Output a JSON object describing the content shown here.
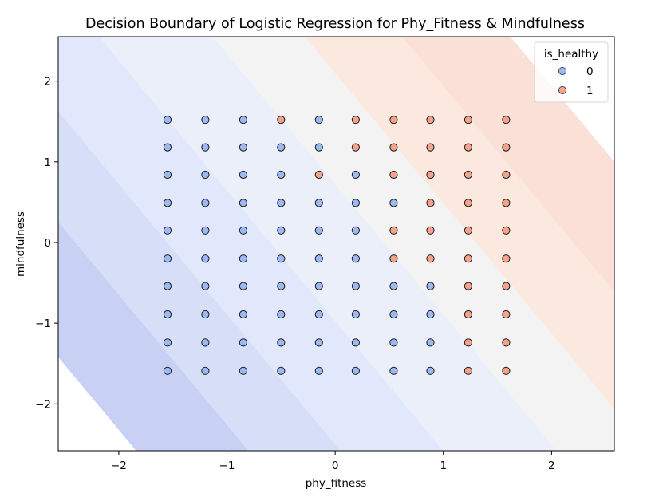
{
  "chart_data": {
    "type": "scatter",
    "title": "Decision Boundary of Logistic Regression for Phy_Fitness & Mindfulness",
    "xlabel": "phy_fitness",
    "ylabel": "mindfulness",
    "xlim": [
      -2.56,
      2.58
    ],
    "ylim": [
      -2.58,
      2.55
    ],
    "xticks": [
      -2,
      -1,
      0,
      1,
      2
    ],
    "yticks": [
      -2,
      -1,
      0,
      1,
      2
    ],
    "x_tick_labels": [
      "−2",
      "−1",
      "0",
      "1",
      "2"
    ],
    "y_tick_labels": [
      "−2",
      "−1",
      "0",
      "1",
      "2"
    ],
    "legend": {
      "title": "is_healthy",
      "position": "top-right",
      "entries": [
        {
          "label": "0",
          "color": "#9db9f1"
        },
        {
          "label": "1",
          "color": "#f3a38a"
        }
      ]
    },
    "class_colors": {
      "0": "#9db9f1",
      "1": "#f3a38a"
    },
    "boundary": {
      "description": "filled contours of predicted probability, coolwarm colormap",
      "direction": [
        1.0,
        0.62
      ],
      "levels": [
        -3.44,
        -2.4,
        -1.55,
        -0.6,
        0.45,
        1.3,
        2.2,
        3.2
      ],
      "colors": [
        "#c8d1f3",
        "#d6def8",
        "#e1e8fb",
        "#ebeffa",
        "#f3f3f3",
        "#fbe8df",
        "#fae0d6",
        "#f7d2c8"
      ]
    },
    "x": [
      -1.55,
      -1.2,
      -0.85,
      -0.5,
      -0.15,
      0.19,
      0.54,
      0.88,
      1.23,
      1.58
    ],
    "y": [
      1.52,
      1.18,
      0.84,
      0.49,
      0.15,
      -0.2,
      -0.54,
      -0.89,
      -1.24,
      -1.59
    ],
    "labels": [
      [
        0,
        0,
        0,
        1,
        0,
        1,
        1,
        1,
        1,
        1
      ],
      [
        0,
        0,
        0,
        0,
        0,
        1,
        1,
        1,
        1,
        1
      ],
      [
        0,
        0,
        0,
        0,
        1,
        0,
        1,
        1,
        1,
        1
      ],
      [
        0,
        0,
        0,
        0,
        0,
        0,
        0,
        1,
        1,
        1
      ],
      [
        0,
        0,
        0,
        0,
        0,
        0,
        1,
        1,
        1,
        1
      ],
      [
        0,
        0,
        0,
        0,
        0,
        0,
        1,
        1,
        1,
        1
      ],
      [
        0,
        0,
        0,
        0,
        0,
        0,
        0,
        0,
        1,
        1
      ],
      [
        0,
        0,
        0,
        0,
        0,
        0,
        0,
        0,
        1,
        1
      ],
      [
        0,
        0,
        0,
        0,
        0,
        0,
        0,
        0,
        1,
        1
      ],
      [
        0,
        0,
        0,
        0,
        0,
        0,
        0,
        0,
        1,
        1
      ]
    ]
  }
}
